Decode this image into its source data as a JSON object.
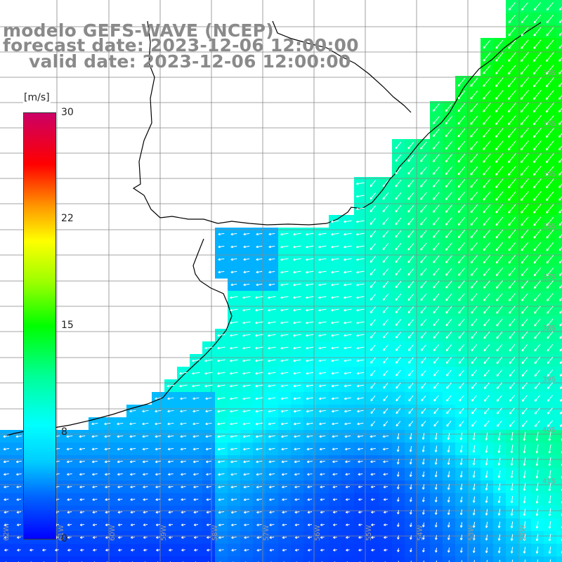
{
  "title": {
    "model": "modelo GEFS-WAVE (NCEP)",
    "forecast": "forecast date: 2023-12-06 12:00:00",
    "valid": "valid date: 2023-12-06 12:00:00"
  },
  "colorbar": {
    "unit": "[m/s]",
    "ticks": [
      "30",
      "22",
      "15",
      "8",
      "0"
    ],
    "range": [
      0,
      30
    ],
    "colors": [
      "#0000ff",
      "#00ccff",
      "#00ffff",
      "#00ff00",
      "#ffff00",
      "#ff0000",
      "#cc0066"
    ]
  },
  "grid_labels": {
    "latitudes": [
      "33S",
      "34S",
      "35S",
      "36S",
      "37S",
      "38S",
      "39S",
      "40S",
      "41S"
    ],
    "longitudes": [
      "62W",
      "61W",
      "60W",
      "59W",
      "58W",
      "57W",
      "56W",
      "55W",
      "54W",
      "53W",
      "52W"
    ]
  },
  "colors": {
    "land": "#ffffff",
    "coastline": "#000000",
    "grid": "#888888",
    "title": "#8a8a8a",
    "arrows": "#ffffff"
  }
}
